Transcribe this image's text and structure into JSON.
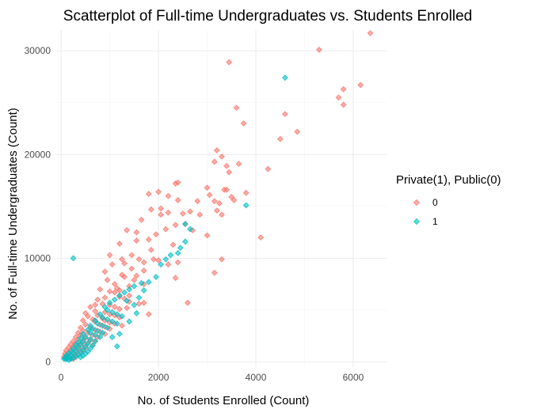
{
  "chart_data": {
    "type": "scatter",
    "title": "Scatterplot of Full-time Undergraduates vs. Students Enrolled",
    "xlabel": "No. of Students Enrolled (Count)",
    "ylabel": "No. of Full-time Undergraduates (Count)",
    "xlim": [
      -100,
      6700
    ],
    "ylim": [
      -500,
      32000
    ],
    "x_ticks": [
      0,
      2000,
      4000,
      6000
    ],
    "y_ticks": [
      0,
      10000,
      20000,
      30000
    ],
    "x_tick_labels": [
      "0",
      "2000",
      "4000",
      "6000"
    ],
    "y_tick_labels": [
      "0",
      "10000",
      "20000",
      "30000"
    ],
    "grid": true,
    "legend": {
      "title": "Private(1), Public(0)",
      "placement": "right",
      "entries": [
        {
          "label": "0",
          "color": "#F8766D"
        },
        {
          "label": "1",
          "color": "#00BFC4"
        }
      ]
    },
    "series": [
      {
        "name": "0",
        "color": "#F8766D",
        "points": [
          [
            6350,
            31700
          ],
          [
            5300,
            30100
          ],
          [
            3450,
            28900
          ],
          [
            6150,
            26700
          ],
          [
            5800,
            26300
          ],
          [
            5700,
            25500
          ],
          [
            5800,
            24800
          ],
          [
            3600,
            24500
          ],
          [
            4600,
            23900
          ],
          [
            3750,
            23000
          ],
          [
            4850,
            22200
          ],
          [
            4500,
            21500
          ],
          [
            3200,
            20400
          ],
          [
            3300,
            19800
          ],
          [
            3150,
            19300
          ],
          [
            3400,
            18900
          ],
          [
            3450,
            18300
          ],
          [
            2350,
            17200
          ],
          [
            2400,
            17300
          ],
          [
            4250,
            18600
          ],
          [
            3000,
            16800
          ],
          [
            3350,
            16600
          ],
          [
            3400,
            16600
          ],
          [
            3050,
            16100
          ],
          [
            3800,
            16300
          ],
          [
            2000,
            16400
          ],
          [
            1800,
            16200
          ],
          [
            2200,
            16000
          ],
          [
            2400,
            15600
          ],
          [
            2800,
            15500
          ],
          [
            3150,
            15500
          ],
          [
            3250,
            15300
          ],
          [
            3550,
            15600
          ],
          [
            2050,
            14800
          ],
          [
            2500,
            14300
          ],
          [
            1850,
            14700
          ],
          [
            2200,
            14400
          ],
          [
            2650,
            14500
          ],
          [
            2850,
            14200
          ],
          [
            3300,
            14200
          ],
          [
            1650,
            13700
          ],
          [
            2050,
            14200
          ],
          [
            2350,
            13200
          ],
          [
            2550,
            13300
          ],
          [
            1350,
            12700
          ],
          [
            1950,
            12300
          ],
          [
            2150,
            12800
          ],
          [
            2700,
            12700
          ],
          [
            1550,
            11700
          ],
          [
            1800,
            11800
          ],
          [
            2300,
            11300
          ],
          [
            1550,
            12500
          ],
          [
            1200,
            11400
          ],
          [
            1000,
            10300
          ],
          [
            1450,
            10300
          ],
          [
            1850,
            10800
          ],
          [
            1600,
            9900
          ],
          [
            1250,
            9900
          ],
          [
            1300,
            9500
          ],
          [
            1450,
            9000
          ],
          [
            1700,
            9600
          ],
          [
            1900,
            9900
          ],
          [
            2000,
            9800
          ],
          [
            2400,
            9600
          ],
          [
            1050,
            9400
          ],
          [
            1250,
            8400
          ],
          [
            1550,
            8300
          ],
          [
            900,
            8700
          ],
          [
            1700,
            8800
          ],
          [
            2200,
            9400
          ],
          [
            950,
            7900
          ],
          [
            1100,
            7500
          ],
          [
            1150,
            7100
          ],
          [
            1200,
            6900
          ],
          [
            1400,
            7300
          ],
          [
            1500,
            7900
          ],
          [
            1700,
            7500
          ],
          [
            1300,
            8200
          ],
          [
            2350,
            8100
          ],
          [
            1000,
            6800
          ],
          [
            1100,
            6700
          ],
          [
            1200,
            6300
          ],
          [
            1300,
            6100
          ],
          [
            1400,
            6400
          ],
          [
            900,
            6200
          ],
          [
            800,
            7000
          ],
          [
            1400,
            5800
          ],
          [
            1600,
            5600
          ],
          [
            1700,
            5700
          ],
          [
            750,
            6000
          ],
          [
            850,
            5600
          ],
          [
            1000,
            5500
          ],
          [
            1100,
            5300
          ],
          [
            1200,
            5100
          ],
          [
            1350,
            5200
          ],
          [
            700,
            5500
          ],
          [
            900,
            4800
          ],
          [
            1000,
            4600
          ],
          [
            1100,
            4500
          ],
          [
            1200,
            4300
          ],
          [
            600,
            5300
          ],
          [
            700,
            4900
          ],
          [
            750,
            4500
          ],
          [
            850,
            4200
          ],
          [
            900,
            4000
          ],
          [
            1000,
            3800
          ],
          [
            1100,
            3700
          ],
          [
            1250,
            3500
          ],
          [
            500,
            4700
          ],
          [
            550,
            4400
          ],
          [
            650,
            4100
          ],
          [
            700,
            3900
          ],
          [
            800,
            3600
          ],
          [
            900,
            3400
          ],
          [
            1000,
            3200
          ],
          [
            450,
            4000
          ],
          [
            500,
            3600
          ],
          [
            600,
            3300
          ],
          [
            700,
            3100
          ],
          [
            800,
            2900
          ],
          [
            900,
            2700
          ],
          [
            400,
            3300
          ],
          [
            450,
            3000
          ],
          [
            550,
            2800
          ],
          [
            650,
            2600
          ],
          [
            750,
            2400
          ],
          [
            350,
            2800
          ],
          [
            400,
            2600
          ],
          [
            500,
            2300
          ],
          [
            600,
            2100
          ],
          [
            700,
            2000
          ],
          [
            300,
            2400
          ],
          [
            350,
            2200
          ],
          [
            450,
            1900
          ],
          [
            550,
            1800
          ],
          [
            650,
            1600
          ],
          [
            250,
            2000
          ],
          [
            300,
            1800
          ],
          [
            400,
            1600
          ],
          [
            500,
            1400
          ],
          [
            200,
            1700
          ],
          [
            250,
            1500
          ],
          [
            350,
            1300
          ],
          [
            450,
            1100
          ],
          [
            150,
            1400
          ],
          [
            200,
            1200
          ],
          [
            300,
            1000
          ],
          [
            400,
            900
          ],
          [
            100,
            1100
          ],
          [
            150,
            900
          ],
          [
            250,
            800
          ],
          [
            350,
            700
          ],
          [
            80,
            800
          ],
          [
            120,
            600
          ],
          [
            200,
            500
          ],
          [
            300,
            450
          ],
          [
            60,
            500
          ],
          [
            100,
            400
          ],
          [
            150,
            350
          ],
          [
            250,
            300
          ],
          [
            3150,
            8600
          ],
          [
            2600,
            5700
          ],
          [
            1800,
            4600
          ],
          [
            3300,
            9900
          ],
          [
            3000,
            12200
          ],
          [
            3200,
            14600
          ],
          [
            3500,
            15900
          ],
          [
            3650,
            19100
          ],
          [
            4100,
            12000
          ]
        ]
      },
      {
        "name": "1",
        "color": "#00BFC4",
        "points": [
          [
            4600,
            27400
          ],
          [
            3800,
            15100
          ],
          [
            2550,
            13300
          ],
          [
            2650,
            12800
          ],
          [
            2550,
            11600
          ],
          [
            2450,
            11000
          ],
          [
            2400,
            10500
          ],
          [
            2250,
            10300
          ],
          [
            2150,
            9900
          ],
          [
            2050,
            9400
          ],
          [
            250,
            10000
          ],
          [
            1950,
            8200
          ],
          [
            1800,
            7700
          ],
          [
            1650,
            7600
          ],
          [
            1500,
            7300
          ],
          [
            1400,
            7000
          ],
          [
            1300,
            6700
          ],
          [
            1200,
            6400
          ],
          [
            1600,
            6200
          ],
          [
            1700,
            6900
          ],
          [
            1100,
            6000
          ],
          [
            1000,
            5700
          ],
          [
            1500,
            5500
          ],
          [
            1350,
            5900
          ],
          [
            900,
            5300
          ],
          [
            950,
            5000
          ],
          [
            1050,
            4800
          ],
          [
            1150,
            4600
          ],
          [
            1250,
            4400
          ],
          [
            800,
            4600
          ],
          [
            850,
            4300
          ],
          [
            950,
            4100
          ],
          [
            1050,
            3900
          ],
          [
            1150,
            3700
          ],
          [
            700,
            4000
          ],
          [
            750,
            3700
          ],
          [
            850,
            3500
          ],
          [
            950,
            3300
          ],
          [
            600,
            3500
          ],
          [
            650,
            3200
          ],
          [
            750,
            3000
          ],
          [
            850,
            2800
          ],
          [
            550,
            3100
          ],
          [
            600,
            2800
          ],
          [
            700,
            2600
          ],
          [
            800,
            2400
          ],
          [
            450,
            2700
          ],
          [
            500,
            2400
          ],
          [
            600,
            2200
          ],
          [
            700,
            2000
          ],
          [
            400,
            2300
          ],
          [
            450,
            2000
          ],
          [
            550,
            1800
          ],
          [
            650,
            1600
          ],
          [
            350,
            1900
          ],
          [
            400,
            1700
          ],
          [
            500,
            1500
          ],
          [
            600,
            1300
          ],
          [
            300,
            1600
          ],
          [
            350,
            1400
          ],
          [
            450,
            1200
          ],
          [
            550,
            1000
          ],
          [
            250,
            1300
          ],
          [
            300,
            1100
          ],
          [
            400,
            950
          ],
          [
            500,
            800
          ],
          [
            200,
            1000
          ],
          [
            250,
            850
          ],
          [
            350,
            700
          ],
          [
            450,
            600
          ],
          [
            150,
            800
          ],
          [
            200,
            650
          ],
          [
            300,
            550
          ],
          [
            400,
            450
          ],
          [
            100,
            600
          ],
          [
            150,
            500
          ],
          [
            250,
            400
          ],
          [
            80,
            400
          ],
          [
            120,
            330
          ],
          [
            200,
            280
          ],
          [
            60,
            300
          ],
          [
            100,
            250
          ],
          [
            160,
            200
          ],
          [
            1050,
            2400
          ],
          [
            1200,
            2700
          ],
          [
            1150,
            1500
          ],
          [
            1400,
            3900
          ],
          [
            1550,
            4700
          ]
        ]
      }
    ]
  }
}
